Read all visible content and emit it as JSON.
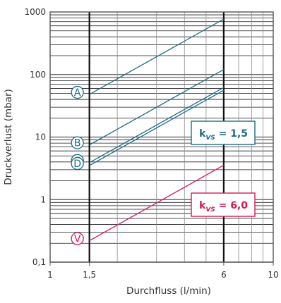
{
  "chart_data": {
    "type": "line",
    "title": "",
    "xlabel": "Durchfluss (l/min)",
    "ylabel": "Druckverlust (mbar)",
    "x_scale": "log",
    "y_scale": "log",
    "xlim": [
      1,
      10
    ],
    "ylim": [
      0.1,
      1000
    ],
    "grid": true,
    "x_ticks": [
      {
        "value": 1,
        "label": "1"
      },
      {
        "value": 1.5,
        "label": "1,5"
      },
      {
        "value": 6,
        "label": "6"
      },
      {
        "value": 10,
        "label": "10"
      }
    ],
    "y_ticks": [
      {
        "value": 0.1,
        "label": "0,1"
      },
      {
        "value": 1,
        "label": "1"
      },
      {
        "value": 10,
        "label": "10"
      },
      {
        "value": 100,
        "label": "100"
      },
      {
        "value": 1000,
        "label": "1000"
      }
    ],
    "series": [
      {
        "name": "A",
        "x": [
          1.5,
          6
        ],
        "y": [
          48,
          770
        ],
        "color": "#1f6b85"
      },
      {
        "name": "B",
        "x": [
          1.5,
          6
        ],
        "y": [
          7.5,
          120
        ],
        "color": "#1f6b85"
      },
      {
        "name": "C",
        "x": [
          1.5,
          6
        ],
        "y": [
          3.9,
          62
        ],
        "color": "#1f6b85"
      },
      {
        "name": "D",
        "x": [
          1.5,
          6
        ],
        "y": [
          3.5,
          56
        ],
        "color": "#1f6b85"
      },
      {
        "name": "V",
        "x": [
          1.5,
          6
        ],
        "y": [
          0.22,
          3.55
        ],
        "color": "#d7194f"
      }
    ],
    "annotations": [
      {
        "base": "k",
        "sub": "VS",
        "text": " = 1,5",
        "color": "#1f6b85"
      },
      {
        "base": "k",
        "sub": "VS",
        "text": " = 6,0",
        "color": "#d7194f"
      }
    ]
  }
}
